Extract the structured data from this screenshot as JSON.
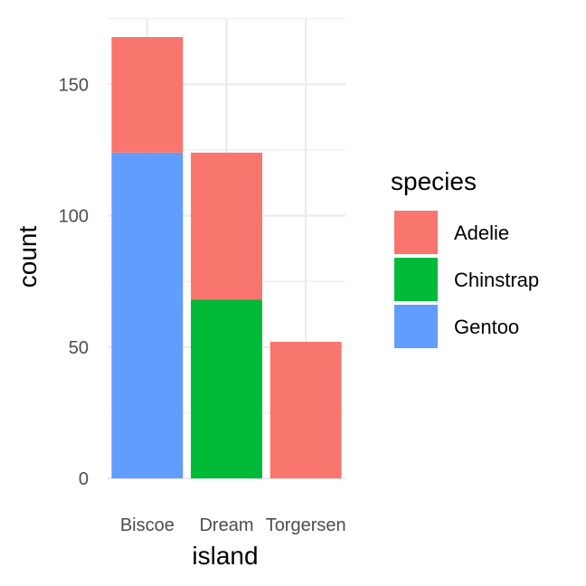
{
  "chart_data": {
    "type": "bar",
    "stacked": true,
    "categories": [
      "Biscoe",
      "Dream",
      "Torgersen"
    ],
    "series": [
      {
        "name": "Gentoo",
        "values": [
          124,
          0,
          0
        ],
        "color": "#619CFF"
      },
      {
        "name": "Chinstrap",
        "values": [
          0,
          68,
          0
        ],
        "color": "#00BA38"
      },
      {
        "name": "Adelie",
        "values": [
          44,
          56,
          52
        ],
        "color": "#F8766D"
      }
    ],
    "xlabel": "island",
    "ylabel": "count",
    "ylim": [
      0,
      168
    ],
    "yticks": [
      0,
      50,
      100,
      150
    ],
    "grid": true,
    "legend": {
      "title": "species",
      "position": "right",
      "entries": [
        {
          "label": "Adelie",
          "color": "#F8766D"
        },
        {
          "label": "Chinstrap",
          "color": "#00BA38"
        },
        {
          "label": "Gentoo",
          "color": "#619CFF"
        }
      ]
    }
  }
}
